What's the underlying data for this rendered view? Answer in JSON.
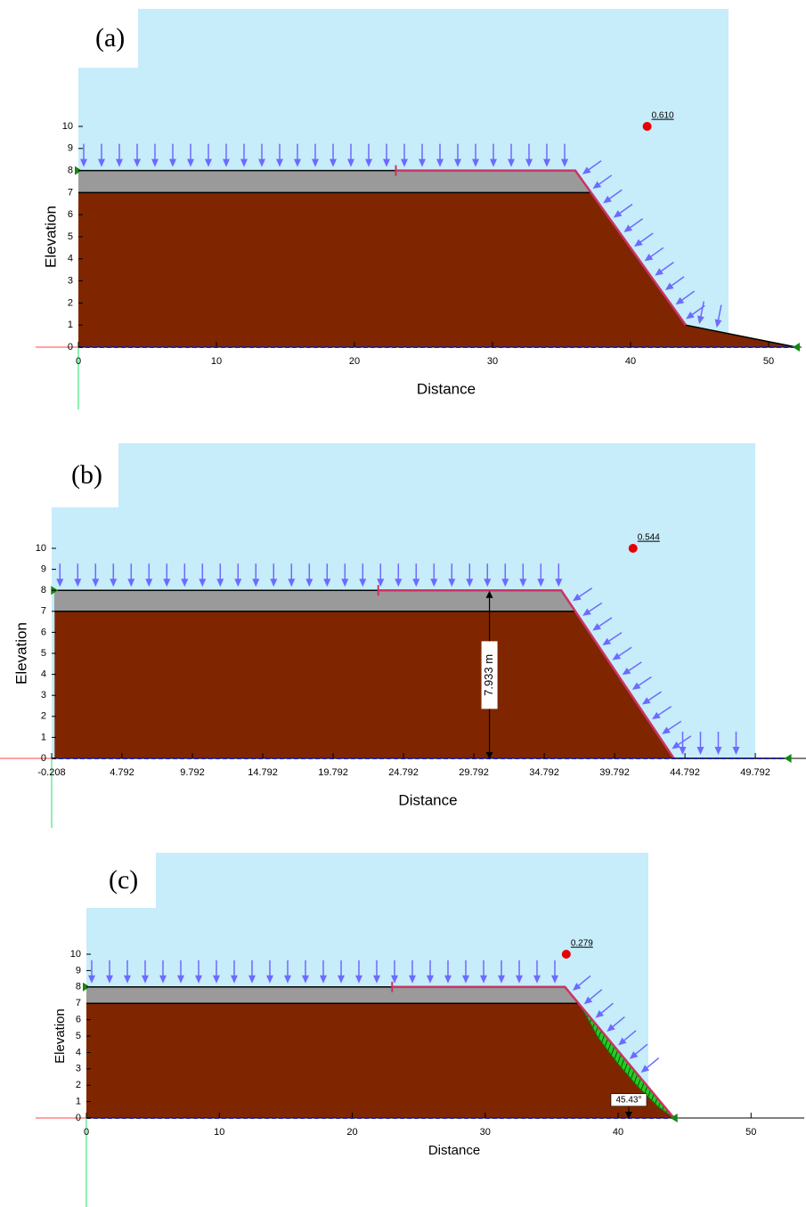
{
  "chart_data": [
    {
      "type": "slope",
      "panel_label": "(a)",
      "x_label": "Distance",
      "y_label": "Elevation",
      "xlim": [
        0,
        52
      ],
      "ylim": [
        0,
        10
      ],
      "xticks": [
        0,
        10,
        20,
        30,
        40,
        50
      ],
      "yticks": [
        0,
        1,
        2,
        3,
        4,
        5,
        6,
        7,
        8,
        9,
        10
      ],
      "surface": {
        "x": [
          0,
          36,
          44,
          52
        ],
        "y": [
          8,
          8,
          1,
          0
        ]
      },
      "layer": {
        "x": [
          0,
          37.1
        ],
        "y": [
          7,
          7
        ]
      },
      "slip_surface": {
        "x": [
          23,
          36,
          44
        ],
        "y": [
          8,
          8,
          1
        ]
      },
      "fos": {
        "x": 41.2,
        "y": 10,
        "label": "0.610"
      }
    },
    {
      "type": "slope",
      "panel_label": "(b)",
      "x_label": "Distance",
      "y_label": "Elevation",
      "xlim": [
        -0.208,
        52
      ],
      "ylim": [
        0,
        10
      ],
      "xticks": [
        -0.208,
        4.792,
        9.792,
        14.792,
        19.792,
        24.792,
        29.792,
        34.792,
        39.792,
        44.792,
        49.792
      ],
      "yticks": [
        0,
        1,
        2,
        3,
        4,
        5,
        6,
        7,
        8,
        9,
        10
      ],
      "surface": {
        "x": [
          0,
          36,
          44,
          52.1
        ],
        "y": [
          8,
          8,
          0,
          0
        ]
      },
      "layer": {
        "x": [
          0,
          37
        ],
        "y": [
          7,
          7
        ]
      },
      "slip_surface": {
        "x": [
          23,
          36,
          44
        ],
        "y": [
          8,
          8,
          0
        ]
      },
      "fos": {
        "x": 41.1,
        "y": 10,
        "label": "0.544"
      },
      "dimension": {
        "x": 30.9,
        "y": [
          0,
          7.933
        ],
        "label": "7.933 m"
      }
    },
    {
      "type": "slope",
      "panel_label": "(c)",
      "x_label": "Distance",
      "y_label": "Elevation",
      "xlim": [
        0,
        54
      ],
      "ylim": [
        0,
        10
      ],
      "xticks": [
        0,
        10,
        20,
        30,
        40,
        50
      ],
      "yticks": [
        0,
        1,
        2,
        3,
        4,
        5,
        6,
        7,
        8,
        9,
        10
      ],
      "surface": {
        "x": [
          0,
          36,
          44.2
        ],
        "y": [
          8,
          8,
          0
        ]
      },
      "layer": {
        "x": [
          0,
          37
        ],
        "y": [
          7,
          7
        ]
      },
      "slip_surface": {
        "x": [
          23,
          36,
          44.2
        ],
        "y": [
          8,
          8,
          0
        ]
      },
      "slip_mass": {
        "x": [
          37.2,
          38.5,
          40,
          41.5,
          43,
          44.2,
          43,
          41.5,
          40,
          38.5
        ],
        "y": [
          6.83,
          5.56,
          4.1,
          2.63,
          1.17,
          0,
          0.7,
          1.9,
          3.3,
          4.9
        ]
      },
      "fos": {
        "x": 36.1,
        "y": 10,
        "label": "0.279"
      },
      "angle": {
        "x": 40.8,
        "y": 1.1,
        "label": "45.43°"
      }
    }
  ]
}
